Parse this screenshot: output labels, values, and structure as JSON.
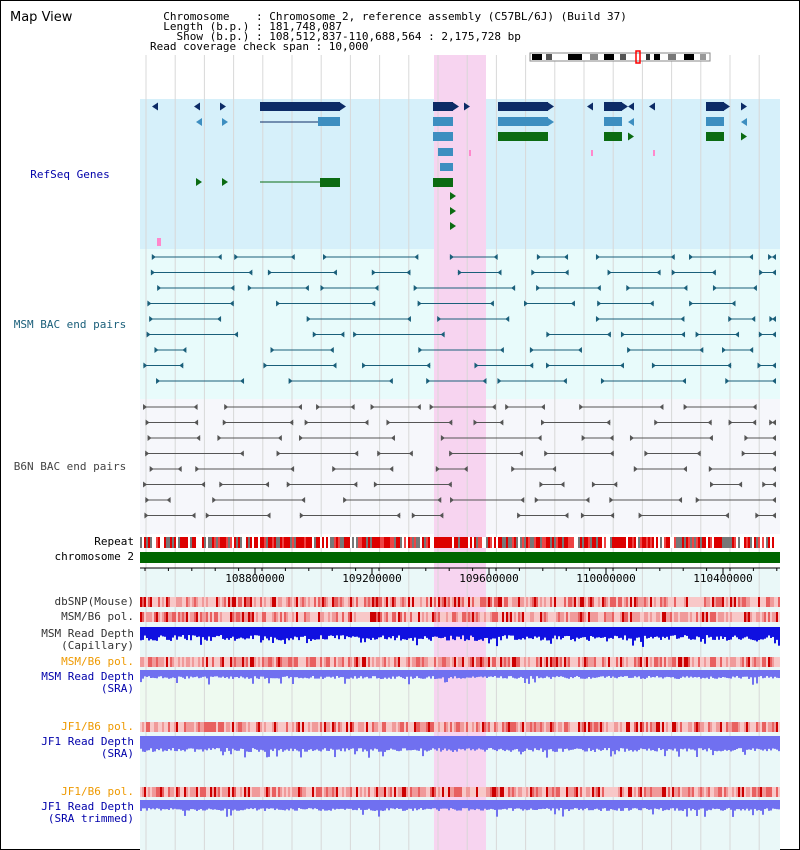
{
  "header": {
    "title": "Map View",
    "info_lines": [
      "  Chromosome    : Chromosome 2, reference assembly (C57BL/6J) (Build 37)",
      "  Length (b.p.) : 181,748,087",
      "    Show (b.p.) : 108,512,837-110,688,564 : 2,175,728 bp",
      "Read coverage check span : 10,000"
    ]
  },
  "tracks": {
    "refseq": {
      "label": "RefSeq Genes",
      "color": "#0000aa"
    },
    "msm_bac": {
      "label": "MSM BAC end pairs",
      "color": "#1a5f7a"
    },
    "b6n_bac": {
      "label": "B6N BAC end pairs",
      "color": "#444444"
    },
    "repeat": {
      "label": "Repeat"
    },
    "chromosome": {
      "label": "chromosome 2"
    },
    "ruler": {
      "ticks": [
        "108800000",
        "109200000",
        "109600000",
        "110000000",
        "110400000"
      ]
    },
    "dbsnp": {
      "label": "dbSNP(Mouse)"
    },
    "msm_b6_pol_1": {
      "label": "MSM/B6 pol."
    },
    "msm_read_depth_cap": {
      "label_line1": "MSM Read Depth",
      "label_line2": "(Capillary)"
    },
    "msm_b6_pol_2": {
      "label": "MSM/B6 pol."
    },
    "msm_read_depth_sra": {
      "label_line1": "MSM Read Depth",
      "label_line2": "(SRA)"
    },
    "jf1_b6_pol_1": {
      "label": "JF1/B6 pol."
    },
    "jf1_read_depth_sra": {
      "label_line1": "JF1 Read Depth",
      "label_line2": "(SRA)"
    },
    "jf1_b6_pol_2": {
      "label": "JF1/B6 pol."
    },
    "jf1_read_depth_trim": {
      "label_line1": "JF1 Read Depth",
      "label_line2": "(SRA trimmed)"
    }
  },
  "colors": {
    "refseq_bg": "#d6f0fa",
    "bac_bg": "#e8fbfb",
    "highlight": "#f7d4f0",
    "gene_dark": "#0d2b66",
    "gene_mid": "#3d8ec0",
    "gene_green": "#0b6b12",
    "msm_bac": "#1a5f7a",
    "b6n_bac": "#555555",
    "chromosome_bar": "#006600",
    "label_gray": "#333333",
    "label_orange": "#ee9900",
    "label_blue": "#0000aa",
    "depth_dark": "#1010e0",
    "depth_light": "#7070f0"
  }
}
